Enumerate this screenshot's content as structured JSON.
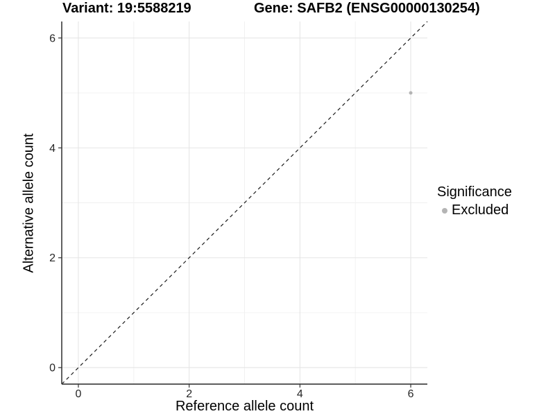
{
  "chart_data": {
    "type": "scatter",
    "title_left": "Variant: 19:5588219",
    "title_right": "Gene: SAFB2 (ENSG00000130254)",
    "xlabel": "Reference allele count",
    "ylabel": "Alternative allele count",
    "xlim": [
      -0.3,
      6.3
    ],
    "ylim": [
      -0.3,
      6.3
    ],
    "x_major_ticks": [
      0,
      2,
      4,
      6
    ],
    "y_major_ticks": [
      0,
      2,
      4,
      6
    ],
    "x_minor_ticks": [
      1,
      3,
      5
    ],
    "y_minor_ticks": [
      1,
      3,
      5
    ],
    "grid": "major+minor",
    "reference_line": {
      "kind": "abline",
      "slope": 1,
      "intercept": 0,
      "style": "dashed",
      "color": "#1a1a1a"
    },
    "series": [
      {
        "name": "Excluded",
        "color": "#b4b4b4",
        "points": [
          {
            "x": 6,
            "y": 5
          }
        ]
      }
    ],
    "legend": {
      "title": "Significance",
      "position": "right",
      "entries": [
        {
          "label": "Excluded",
          "color": "#b4b4b4"
        }
      ]
    },
    "colors": {
      "background": "#ffffff",
      "grid_major": "#e5e5e5",
      "grid_minor": "#f0f0f0",
      "axis_line": "#444444",
      "tick_mark": "#333333",
      "tick_label": "#262626"
    }
  }
}
